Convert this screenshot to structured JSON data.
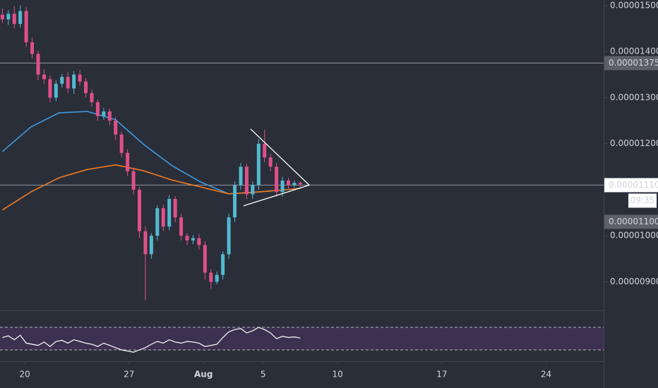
{
  "chart_data": {
    "type": "candlestick",
    "x": [
      18.5,
      18.9,
      19.3,
      19.7,
      20.1,
      20.5,
      20.9,
      21.3,
      21.7,
      22.1,
      22.5,
      22.9,
      23.3,
      23.7,
      24.1,
      24.5,
      24.9,
      25.3,
      25.7,
      26.1,
      26.5,
      26.9,
      27.3,
      27.7,
      28.1,
      28.5,
      28.9,
      29.3,
      29.7,
      30.1,
      30.5,
      30.9,
      31.3,
      31.7,
      32.1,
      32.5,
      32.9,
      33.3,
      33.7,
      34.1,
      34.5,
      34.9,
      35.3,
      35.7,
      36.1,
      36.5,
      36.9,
      37.3,
      37.7,
      38.1,
      38.5
    ],
    "open": [
      1.48e-05,
      1.47e-05,
      1.482e-05,
      1.46e-05,
      1.488e-05,
      1.42e-05,
      1.395e-05,
      1.35e-05,
      1.34e-05,
      1.3e-05,
      1.33e-05,
      1.345e-05,
      1.32e-05,
      1.35e-05,
      1.335e-05,
      1.31e-05,
      1.29e-05,
      1.26e-05,
      1.27e-05,
      1.25e-05,
      1.22e-05,
      1.18e-05,
      1.14e-05,
      1.1e-05,
      1.01e-05,
      9.6e-06,
      1e-05,
      1.06e-05,
      1.02e-05,
      1.08e-05,
      1.04e-05,
      1e-05,
      9.9e-06,
      9.95e-06,
      9.8e-06,
      9.2e-06,
      9e-06,
      9.15e-06,
      9.6e-06,
      1.04e-05,
      1.11e-05,
      1.15e-05,
      1.09e-05,
      1.11e-05,
      1.2e-05,
      1.17e-05,
      1.15e-05,
      1.095e-05,
      1.12e-05,
      1.11e-05,
      1.115e-05
    ],
    "high": [
      1.494e-05,
      1.49e-05,
      1.498e-05,
      1.5e-05,
      1.496e-05,
      1.43e-05,
      1.402e-05,
      1.362e-05,
      1.348e-05,
      1.338e-05,
      1.352e-05,
      1.356e-05,
      1.358e-05,
      1.36e-05,
      1.342e-05,
      1.318e-05,
      1.296e-05,
      1.278e-05,
      1.276e-05,
      1.258e-05,
      1.226e-05,
      1.188e-05,
      1.148e-05,
      1.106e-05,
      1.02e-05,
      1.006e-05,
      1.066e-05,
      1.068e-05,
      1.088e-05,
      1.086e-05,
      1.048e-05,
      1.006e-05,
      1.002e-05,
      1.004e-05,
      9.88e-06,
      9.28e-06,
      9.22e-06,
      9.66e-06,
      1.048e-05,
      1.118e-05,
      1.158e-05,
      1.156e-05,
      1.118e-05,
      1.21e-05,
      1.23e-05,
      1.178e-05,
      1.158e-05,
      1.128e-05,
      1.126e-05,
      1.12e-05,
      1.118e-05
    ],
    "low": [
      1.462e-05,
      1.458e-05,
      1.45e-05,
      1.452e-05,
      1.41e-05,
      1.385e-05,
      1.338e-05,
      1.33e-05,
      1.29e-05,
      1.292e-05,
      1.322e-05,
      1.31e-05,
      1.308e-05,
      1.326e-05,
      1.3e-05,
      1.28e-05,
      1.25e-05,
      1.252e-05,
      1.24e-05,
      1.208e-05,
      1.17e-05,
      1.13e-05,
      1.09e-05,
      9.95e-06,
      8.6e-06,
      9.5e-06,
      9.9e-06,
      1.01e-05,
      1.012e-05,
      1.03e-05,
      9.9e-06,
      9.8e-06,
      9.82e-06,
      9.7e-06,
      9.05e-06,
      8.85e-06,
      8.95e-06,
      9.05e-06,
      9.5e-06,
      1.03e-05,
      1.1e-05,
      1.08e-05,
      1.08e-05,
      1.1e-05,
      1.16e-05,
      1.14e-05,
      1.085e-05,
      1.085e-05,
      1.1e-05,
      1.105e-05,
      1.106e-05
    ],
    "close": [
      1.47e-05,
      1.482e-05,
      1.46e-05,
      1.488e-05,
      1.42e-05,
      1.395e-05,
      1.35e-05,
      1.34e-05,
      1.3e-05,
      1.33e-05,
      1.345e-05,
      1.32e-05,
      1.35e-05,
      1.335e-05,
      1.31e-05,
      1.29e-05,
      1.26e-05,
      1.27e-05,
      1.25e-05,
      1.22e-05,
      1.18e-05,
      1.14e-05,
      1.1e-05,
      1.01e-05,
      9.6e-06,
      1e-05,
      1.06e-05,
      1.02e-05,
      1.08e-05,
      1.04e-05,
      1e-05,
      9.9e-06,
      9.95e-06,
      9.8e-06,
      9.2e-06,
      9e-06,
      9.15e-06,
      9.6e-06,
      1.04e-05,
      1.11e-05,
      1.15e-05,
      1.09e-05,
      1.11e-05,
      1.2e-05,
      1.17e-05,
      1.15e-05,
      1.095e-05,
      1.12e-05,
      1.11e-05,
      1.115e-05,
      1.112e-05
    ],
    "up_color": "#53b9d0",
    "down_color": "#e0508a",
    "lines": [
      {
        "color": "#3f9be0",
        "x": [
          18.5,
          20.4,
          22.3,
          24.2,
          26.1,
          28,
          29.9,
          31.8,
          33.7,
          35.6,
          37.5,
          38.5
        ],
        "values": [
          1.183e-05,
          1.236e-05,
          1.267e-05,
          1.27e-05,
          1.252e-05,
          1.198e-05,
          1.152e-05,
          1.117e-05,
          1.091e-05,
          1.095e-05,
          1.1e-05,
          1.103e-05
        ]
      },
      {
        "color": "#f07a1e",
        "x": [
          18.5,
          20.4,
          22.3,
          24.2,
          26.1,
          28,
          29.9,
          31.8,
          33.7,
          35.6,
          37.5,
          38.5
        ],
        "values": [
          1.056e-05,
          1.095e-05,
          1.126e-05,
          1.144e-05,
          1.154e-05,
          1.141e-05,
          1.121e-05,
          1.106e-05,
          1.091e-05,
          1.095e-05,
          1.1e-05,
          1.103e-05
        ]
      }
    ],
    "trendlines": [
      {
        "x": [
          35.16,
          39.1
        ],
        "values": [
          1.232e-05,
          1.11e-05
        ]
      },
      {
        "x": [
          34.69,
          39.1
        ],
        "values": [
          1.065e-05,
          1.11e-05
        ]
      }
    ],
    "hlines": [
      1.375e-05,
      1.11e-05
    ],
    "xlim": [
      18.34,
      58.86
    ],
    "ylim": [
      8.38e-06,
      1.512e-05
    ],
    "yticks": [
      {
        "value": 1.5e-05,
        "label": "0.00001500"
      },
      {
        "value": 1.4e-05,
        "label": "0.00001400"
      },
      {
        "value": 1.3e-05,
        "label": "0.00001300"
      },
      {
        "value": 1.2e-05,
        "label": "0.00001200"
      },
      {
        "value": 1e-05,
        "label": "0.00001000"
      },
      {
        "value": 9e-06,
        "label": "0.00000900"
      }
    ],
    "xticks": [
      20,
      27,
      {
        "value": 32,
        "label": "Aug"
      },
      {
        "value": 36,
        "label": "5"
      },
      {
        "value": 41,
        "label": "10"
      },
      {
        "value": 48,
        "label": "17"
      },
      {
        "value": 55,
        "label": "24"
      }
    ],
    "price_labels": [
      {
        "value": 1.375e-05,
        "label": "0.00001375"
      },
      {
        "value": 1.11e-05,
        "label": "0.00001110"
      },
      {
        "value": 1.1e-05,
        "label": "0.00001100"
      }
    ],
    "countdown": "09:35",
    "rsi": {
      "values": [
        52,
        55,
        48,
        56,
        42,
        40,
        38,
        44,
        36,
        45,
        47,
        42,
        48,
        45,
        42,
        40,
        36,
        42,
        38,
        34,
        30,
        28,
        26,
        30,
        34,
        40,
        45,
        42,
        48,
        44,
        42,
        45,
        44,
        42,
        36,
        38,
        40,
        52,
        62,
        66,
        68,
        60,
        64,
        70,
        66,
        60,
        50,
        54,
        52,
        53,
        51
      ],
      "ylim": [
        10,
        100
      ],
      "bands": [
        30,
        70
      ],
      "color": "#ffffff",
      "band_color": "#3c3150"
    }
  }
}
